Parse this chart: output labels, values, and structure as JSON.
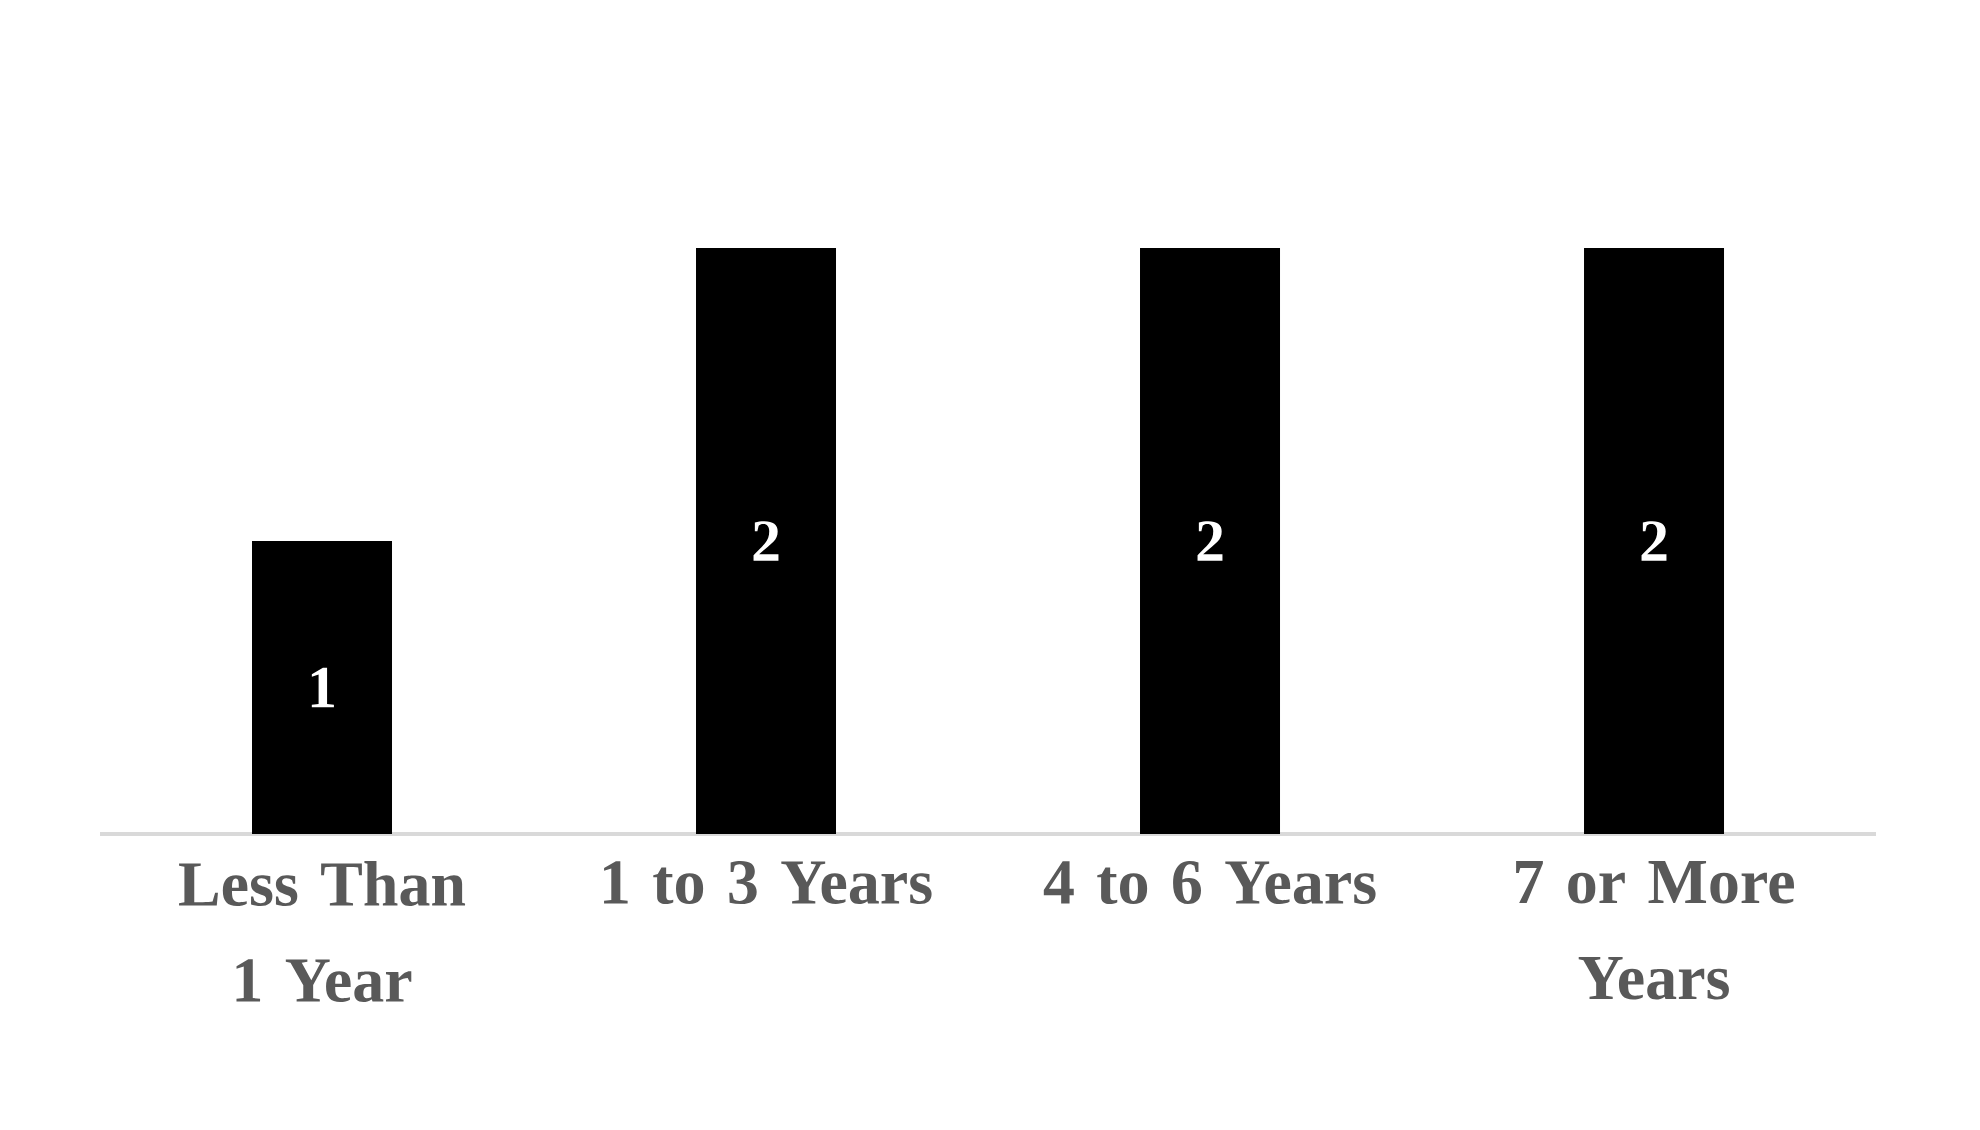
{
  "chart_data": {
    "type": "bar",
    "categories": [
      "Less Than 1 Year",
      "1 to 3 Years",
      "4 to 6 Years",
      "7 or More Years"
    ],
    "values": [
      1,
      2,
      2,
      2
    ],
    "color": "#000000",
    "data_labels": true
  }
}
